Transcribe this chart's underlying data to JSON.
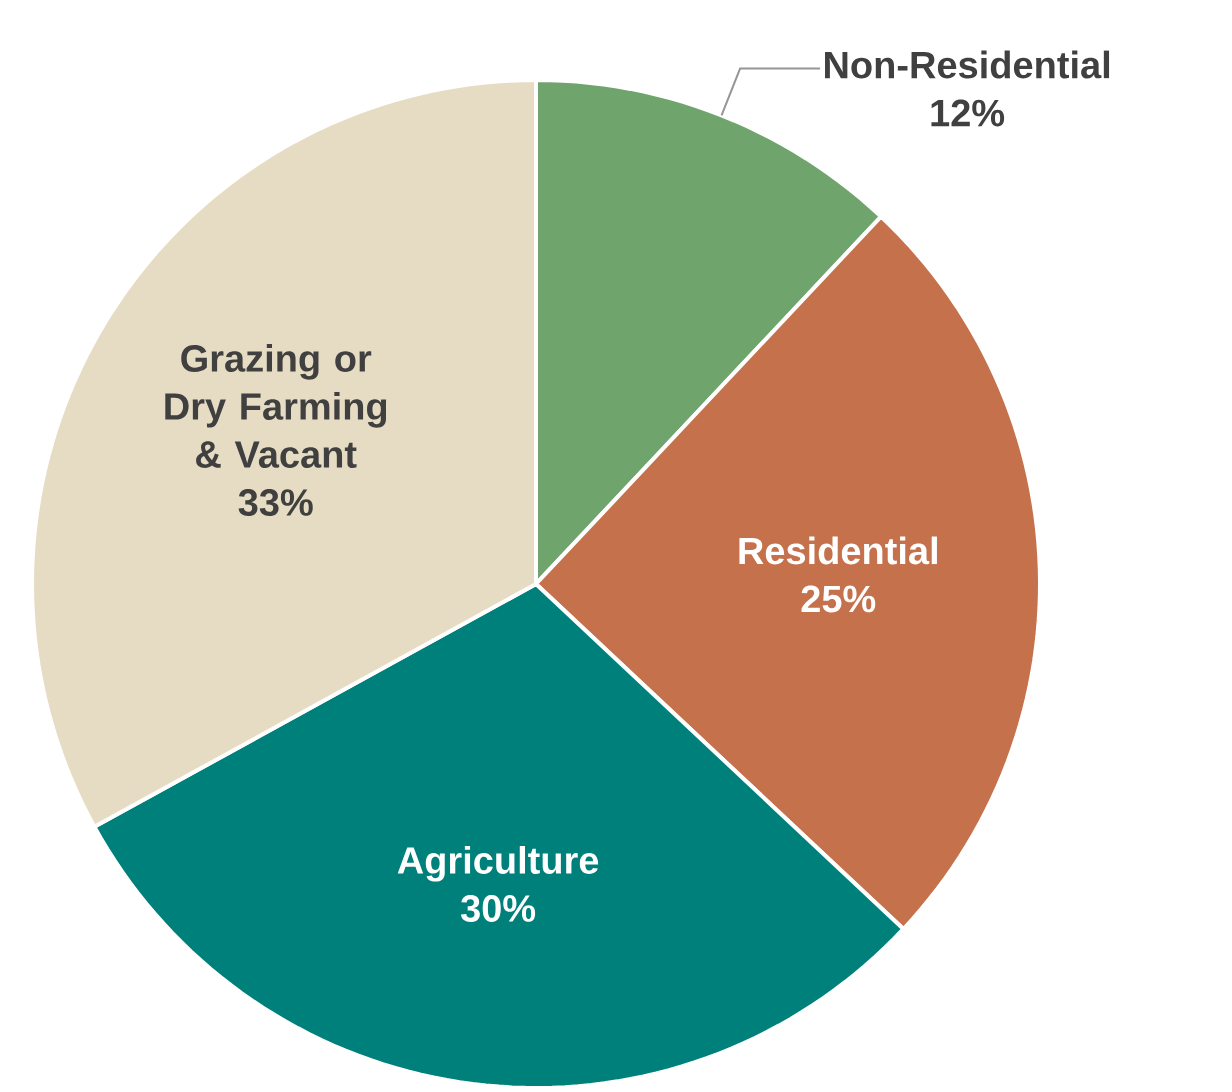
{
  "chart_data": {
    "type": "pie",
    "categories": [
      "Non-Residential",
      "Residential",
      "Agriculture",
      "Grazing or Dry Farming & Vacant"
    ],
    "values": [
      12,
      25,
      30,
      33
    ],
    "value_labels": [
      "12%",
      "25%",
      "30%",
      "33%"
    ],
    "colors": [
      "#70a46d",
      "#c4714c",
      "#00807b",
      "#e6dcc3"
    ]
  }
}
